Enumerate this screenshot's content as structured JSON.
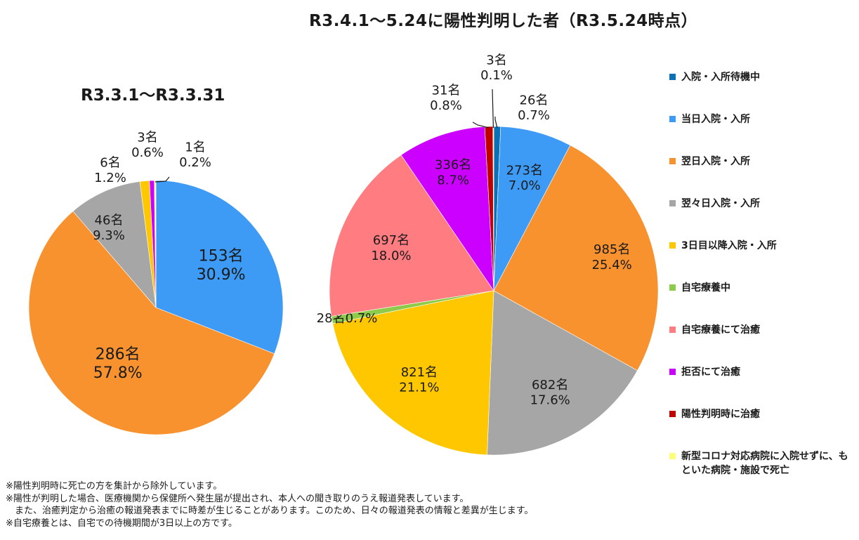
{
  "title": "R3.4.1〜5.24に陽性判明した者（R3.5.24時点）",
  "colors": {
    "hospital_wait": "#0b70b8",
    "same_day": "#3d9bf5",
    "next_day": "#f7922e",
    "two_days": "#a6a6a6",
    "three_plus": "#ffc700",
    "home": "#8fcb4a",
    "home_treated": "#ff7c80",
    "refused": "#cc00ff",
    "at_detect": "#c00000",
    "other_facility": "#fdfd7a"
  },
  "legend": [
    {
      "label": "入院・入所待機中",
      "color_key": "hospital_wait"
    },
    {
      "label": "当日入院・入所",
      "color_key": "same_day"
    },
    {
      "label": "翌日入院・入所",
      "color_key": "next_day"
    },
    {
      "label": "翌々日入院・入所",
      "color_key": "two_days"
    },
    {
      "label": "3日目以降入院・入所",
      "color_key": "three_plus"
    },
    {
      "label": "自宅療養中",
      "color_key": "home"
    },
    {
      "label": "自宅療養にて治癒",
      "color_key": "home_treated"
    },
    {
      "label": "拒否にて治癒",
      "color_key": "refused"
    },
    {
      "label": "陽性判明時に治癒",
      "color_key": "at_detect"
    },
    {
      "label": "新型コロナ対応病院に入院せずに、もといた病院・施設で死亡",
      "color_key": "other_facility"
    }
  ],
  "chart_data": [
    {
      "type": "pie",
      "title": "R3.3.1〜R3.3.31",
      "slices": [
        {
          "category": "当日入院・入所",
          "count": 153,
          "percent": 30.9,
          "count_label": "153名",
          "percent_label": "30.9%",
          "color_key": "same_day"
        },
        {
          "category": "翌日入院・入所",
          "count": 286,
          "percent": 57.8,
          "count_label": "286名",
          "percent_label": "57.8%",
          "color_key": "next_day"
        },
        {
          "category": "翌々日入院・入所",
          "count": 46,
          "percent": 9.3,
          "count_label": "46名",
          "percent_label": "9.3%",
          "color_key": "two_days"
        },
        {
          "category": "3日目以降入院・入所",
          "count": 6,
          "percent": 1.2,
          "count_label": "6名",
          "percent_label": "1.2%",
          "color_key": "three_plus"
        },
        {
          "category": "拒否にて治癒",
          "count": 3,
          "percent": 0.6,
          "count_label": "3名",
          "percent_label": "0.6%",
          "color_key": "refused"
        },
        {
          "category": "新型コロナ対応病院に入院せずに、もといた病院・施設で死亡",
          "count": 1,
          "percent": 0.2,
          "count_label": "1名",
          "percent_label": "0.2%",
          "color_key": "other_facility"
        }
      ]
    },
    {
      "type": "pie",
      "title": "R3.4.1〜5.24に陽性判明した者（R3.5.24時点）",
      "slices": [
        {
          "category": "入院・入所待機中",
          "count": 26,
          "percent": 0.7,
          "count_label": "26名",
          "percent_label": "0.7%",
          "color_key": "hospital_wait"
        },
        {
          "category": "当日入院・入所",
          "count": 273,
          "percent": 7.0,
          "count_label": "273名",
          "percent_label": "7.0%",
          "color_key": "same_day"
        },
        {
          "category": "翌日入院・入所",
          "count": 985,
          "percent": 25.4,
          "count_label": "985名",
          "percent_label": "25.4%",
          "color_key": "next_day"
        },
        {
          "category": "翌々日入院・入所",
          "count": 682,
          "percent": 17.6,
          "count_label": "682名",
          "percent_label": "17.6%",
          "color_key": "two_days"
        },
        {
          "category": "3日目以降入院・入所",
          "count": 821,
          "percent": 21.1,
          "count_label": "821名",
          "percent_label": "21.1%",
          "color_key": "three_plus"
        },
        {
          "category": "自宅療養中",
          "count": 28,
          "percent": 0.7,
          "count_label": "28名",
          "percent_label": "0.7%",
          "color_key": "home"
        },
        {
          "category": "自宅療養にて治癒",
          "count": 697,
          "percent": 18.0,
          "count_label": "697名",
          "percent_label": "18.0%",
          "color_key": "home_treated"
        },
        {
          "category": "拒否にて治癒",
          "count": 336,
          "percent": 8.7,
          "count_label": "336名",
          "percent_label": "8.7%",
          "color_key": "refused"
        },
        {
          "category": "陽性判明時に治癒",
          "count": 31,
          "percent": 0.8,
          "count_label": "31名",
          "percent_label": "0.8%",
          "color_key": "at_detect"
        },
        {
          "category": "新型コロナ対応病院に入院せずに、もといた病院・施設で死亡",
          "count": 3,
          "percent": 0.1,
          "count_label": "3名",
          "percent_label": "0.1%",
          "color_key": "other_facility"
        }
      ]
    }
  ],
  "notes": [
    "※陽性判明時に死亡の方を集計から除外しています。",
    "※陽性が判明した場合、医療機関から保健所へ発生届が提出され、本人への聞き取りのうえ報道発表しています。",
    "　また、治癒判定から治癒の報道発表までに時差が生じることがあります。このため、日々の報道発表の情報と差異が生じます。",
    "※自宅療養とは、自宅での待機期間が3日以上の方です。"
  ]
}
